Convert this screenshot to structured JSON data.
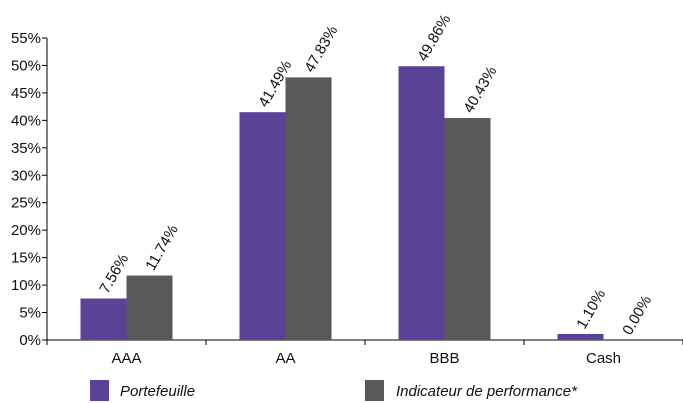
{
  "chart_data": {
    "type": "bar",
    "categories": [
      "AAA",
      "AA",
      "BBB",
      "Cash"
    ],
    "series": [
      {
        "name": "Portefeuille",
        "values": [
          7.56,
          41.49,
          49.86,
          1.1
        ],
        "labels": [
          "7.56%",
          "41.49%",
          "49.86%",
          "1.10%"
        ],
        "color": "#5a4397"
      },
      {
        "name": "Indicateur de performance*",
        "values": [
          11.74,
          47.83,
          40.43,
          0.0
        ],
        "labels": [
          "11.74%",
          "47.83%",
          "40.43%",
          "0.00%"
        ],
        "color": "#595959"
      }
    ],
    "yticks": [
      "0%",
      "5%",
      "10%",
      "15%",
      "20%",
      "25%",
      "30%",
      "35%",
      "40%",
      "45%",
      "50%",
      "55%"
    ],
    "ylim": [
      0,
      55
    ],
    "grid": false,
    "legend": "bottom"
  }
}
